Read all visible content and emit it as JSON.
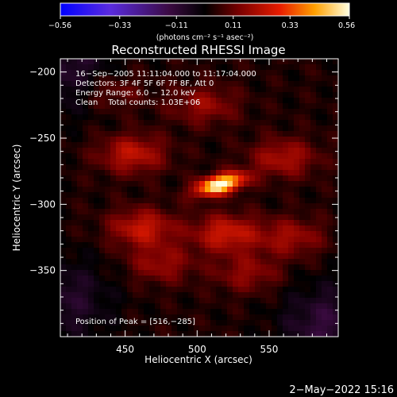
{
  "chart_data": {
    "type": "heatmap",
    "title": "Reconstructed RHESSI Image",
    "xlabel": "Heliocentric X (arcsec)",
    "ylabel": "Heliocentric Y (arcsec)",
    "xlim": [
      405,
      598
    ],
    "ylim": [
      -400,
      -190
    ],
    "x_ticks": [
      450,
      500,
      550
    ],
    "y_ticks": [
      -200,
      -250,
      -300,
      -350
    ],
    "x_tick_labels": [
      "450",
      "500",
      "550"
    ],
    "y_tick_labels": [
      "−200",
      "−250",
      "−300",
      "−350"
    ],
    "colorbar": {
      "range": [
        -0.56,
        0.56
      ],
      "ticks": [
        -0.56,
        -0.33,
        -0.11,
        0.11,
        0.33,
        0.56
      ],
      "tick_labels": [
        "−0.56",
        "−0.33",
        "−0.11",
        "0.11",
        "0.33",
        "0.56"
      ],
      "units_label": "(photons cm⁻² s⁻¹ asec⁻²)",
      "colormap": "RHESSI blue-red-yellow-white"
    },
    "annotations": [
      "16−Sep−2005 11:11:04.000 to 11:17:04.000",
      "Detectors: 3F 4F 5F 6F 7F 8F, Att 0",
      "Energy Range: 6.0 − 12.0 keV",
      "Clean    Total counts: 1.03E+06",
      "Position of Peak = [516,−285]"
    ],
    "peak": {
      "x": 516,
      "y": -285,
      "value": 0.56
    },
    "features": [
      {
        "kind": "peak-source",
        "x": 516,
        "y": -285,
        "value": 0.56
      },
      {
        "kind": "emission-lobe",
        "x": 455,
        "y": -262,
        "value": 0.2
      },
      {
        "kind": "emission-lobe",
        "x": 560,
        "y": -265,
        "value": 0.17
      },
      {
        "kind": "emission-lobe",
        "x": 462,
        "y": -318,
        "value": 0.21
      },
      {
        "kind": "emission-lobe",
        "x": 520,
        "y": -322,
        "value": 0.22
      },
      {
        "kind": "emission-lobe",
        "x": 565,
        "y": -325,
        "value": 0.15
      },
      {
        "kind": "emission-lobe",
        "x": 475,
        "y": -345,
        "value": 0.14
      },
      {
        "kind": "emission-lobe",
        "x": 535,
        "y": -352,
        "value": 0.13
      },
      {
        "kind": "emission-lobe",
        "x": 440,
        "y": -215,
        "value": 0.1
      },
      {
        "kind": "emission-lobe",
        "x": 505,
        "y": -225,
        "value": 0.14
      },
      {
        "kind": "negative-region",
        "x": 410,
        "y": -200,
        "value": -0.12
      },
      {
        "kind": "negative-region",
        "x": 590,
        "y": -392,
        "value": -0.14
      },
      {
        "kind": "negative-region",
        "x": 410,
        "y": -372,
        "value": -0.11
      }
    ]
  },
  "footer": {
    "date": "2−May−2022 15:16"
  }
}
